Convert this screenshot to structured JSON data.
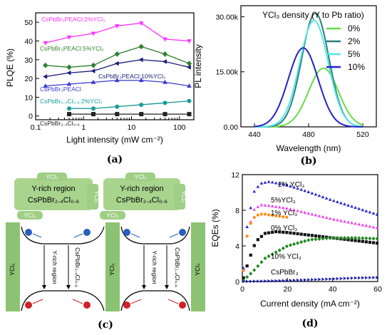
{
  "panels": {
    "a": {
      "caption": "(a)",
      "xlabel": "Light intensity (mW cm⁻²)",
      "ylabel": "PLQE (%)",
      "xticks": [
        "0.1",
        "1",
        "10",
        "100"
      ],
      "yticks": [
        "0",
        "10",
        "20",
        "30",
        "40",
        "50"
      ]
    },
    "b": {
      "caption": "(b)",
      "xlabel": "Wavelength (nm)",
      "ylabel": "PL intensity",
      "xticks": [
        "440",
        "480",
        "520"
      ],
      "yticks": [
        "0.00",
        "15.00k",
        "30.00k"
      ],
      "legend_title": "YCl₃ density (Y to Pb ratio)"
    },
    "c": {
      "caption": "(c)",
      "labels": {
        "ycl3": "YCl₃",
        "yrich_region": "Y-rich region",
        "composition": "CsPbBr₂.₄Cl₀.₆",
        "yrich_vertical": "Y-rich region",
        "comp_vertical": "CsPbBr₂.₄Cl₀.₆"
      }
    },
    "d": {
      "caption": "(d)",
      "xlabel": "Current density (mA cm⁻²)",
      "ylabel": "EQEs (%)",
      "xticks": [
        "0",
        "20",
        "40",
        "60"
      ],
      "yticks": [
        "0",
        "4",
        "8",
        "12"
      ]
    }
  },
  "chart_data": [
    {
      "type": "line",
      "panel": "a",
      "xscale": "log",
      "xlim": [
        0.1,
        200
      ],
      "ylim": [
        -2,
        55
      ],
      "xlabel": "Light intensity (mW cm⁻²)",
      "ylabel": "PLQE (%)",
      "x": [
        0.16,
        0.5,
        1.6,
        5,
        16,
        50,
        160
      ],
      "series": [
        {
          "name": "CsPbBr₃PEACl:2%YCl₃",
          "color": "#ff33ff",
          "marker": "triangle-down",
          "values": [
            39,
            42,
            44,
            48,
            49.5,
            41,
            40
          ]
        },
        {
          "name": "CsPbBr₃PEACl:5%YCl₃",
          "color": "#2f7f2f",
          "marker": "diamond",
          "values": [
            27,
            26,
            27,
            33,
            37,
            33,
            28
          ]
        },
        {
          "name": "CsPbBr₃PEACl:10%YCl₃",
          "color": "#1a1a7a",
          "marker": "triangle-left",
          "values": [
            21,
            23,
            24,
            28,
            30,
            29,
            26
          ]
        },
        {
          "name": "CsPbBr₃PEACl",
          "color": "#3a3ad0",
          "marker": "triangle-up",
          "values": [
            16,
            17,
            18,
            19,
            19,
            18,
            16
          ]
        },
        {
          "name": "CsPbBr₂.₄Cl₀.₆:2%YCl₃",
          "color": "#1a9a9a",
          "marker": "circle",
          "values": [
            null,
            4,
            4,
            5,
            6,
            7,
            8
          ]
        },
        {
          "name": "CsPbBr₂.₄Cl₀.₆",
          "color": "#222222",
          "marker": "square",
          "values": [
            null,
            1,
            1,
            1,
            1,
            1,
            1
          ]
        }
      ]
    },
    {
      "type": "line",
      "panel": "b",
      "xlim": [
        430,
        530
      ],
      "ylim": [
        0,
        33000
      ],
      "xlabel": "Wavelength (nm)",
      "ylabel": "PL intensity",
      "legend_title": "YCl₃ density (Y to Pb ratio)",
      "legend": "top-right",
      "series": [
        {
          "name": "0%",
          "color": "#66dd44",
          "peak": 491,
          "amplitude": 16000,
          "sigma": 11
        },
        {
          "name": "2%",
          "color": "#2e7d7d",
          "peak": 485,
          "amplitude": 31000,
          "sigma": 10
        },
        {
          "name": "5%",
          "color": "#55e6e6",
          "peak": 484,
          "amplitude": 29000,
          "sigma": 10.5
        },
        {
          "name": "10%",
          "color": "#2222cc",
          "peak": 476,
          "amplitude": 21500,
          "sigma": 11
        }
      ]
    },
    {
      "type": "scatter",
      "panel": "d",
      "xlim": [
        0,
        60
      ],
      "ylim": [
        0,
        12
      ],
      "xlabel": "Current density (mA cm⁻²)",
      "ylabel": "EQEs (%)",
      "series": [
        {
          "name": "2% YCl₃",
          "color": "#2a2ac8",
          "marker": "triangle-up",
          "curve": [
            [
              0,
              0
            ],
            [
              2,
              6
            ],
            [
              5,
              10
            ],
            [
              8,
              11
            ],
            [
              12,
              11.2
            ],
            [
              20,
              10.8
            ],
            [
              30,
              10
            ],
            [
              40,
              9.1
            ],
            [
              50,
              8.3
            ],
            [
              60,
              7.5
            ]
          ]
        },
        {
          "name": "5%YCl₃",
          "color": "#ee44ee",
          "marker": "triangle-up",
          "curve": [
            [
              0,
              0
            ],
            [
              2,
              5
            ],
            [
              5,
              8
            ],
            [
              8,
              8.6
            ],
            [
              12,
              8.5
            ],
            [
              20,
              8.2
            ],
            [
              30,
              7.6
            ],
            [
              40,
              7
            ],
            [
              50,
              6.5
            ],
            [
              60,
              6
            ]
          ]
        },
        {
          "name": "1% YCl₃",
          "color": "#ff8c1a",
          "marker": "circle",
          "curve": [
            [
              0,
              0
            ],
            [
              2,
              5
            ],
            [
              4,
              6.8
            ],
            [
              6,
              7.4
            ],
            [
              9,
              7.6
            ],
            [
              14,
              7.4
            ],
            [
              20,
              7.2
            ]
          ]
        },
        {
          "name": "0% YCl₃",
          "color": "#111111",
          "marker": "square",
          "curve": [
            [
              0,
              0
            ],
            [
              3,
              2.5
            ],
            [
              6,
              4.5
            ],
            [
              10,
              5.4
            ],
            [
              15,
              5.6
            ],
            [
              20,
              5.5
            ],
            [
              30,
              5.2
            ],
            [
              40,
              4.9
            ],
            [
              50,
              4.6
            ],
            [
              60,
              4.3
            ]
          ]
        },
        {
          "name": "10% YCl₃",
          "color": "#228822",
          "marker": "diamond",
          "curve": [
            [
              0,
              0
            ],
            [
              5,
              1.2
            ],
            [
              10,
              2.6
            ],
            [
              20,
              4
            ],
            [
              30,
              4.7
            ],
            [
              40,
              4.9
            ],
            [
              50,
              4.9
            ],
            [
              60,
              4.8
            ]
          ]
        },
        {
          "name": "CsPbBr₃",
          "color": "#1a1aaa",
          "marker": "triangle-right",
          "curve": [
            [
              0,
              0
            ],
            [
              10,
              0.05
            ],
            [
              20,
              0.12
            ],
            [
              30,
              0.2
            ],
            [
              40,
              0.3
            ],
            [
              50,
              0.4
            ],
            [
              60,
              0.45
            ]
          ]
        }
      ]
    }
  ]
}
